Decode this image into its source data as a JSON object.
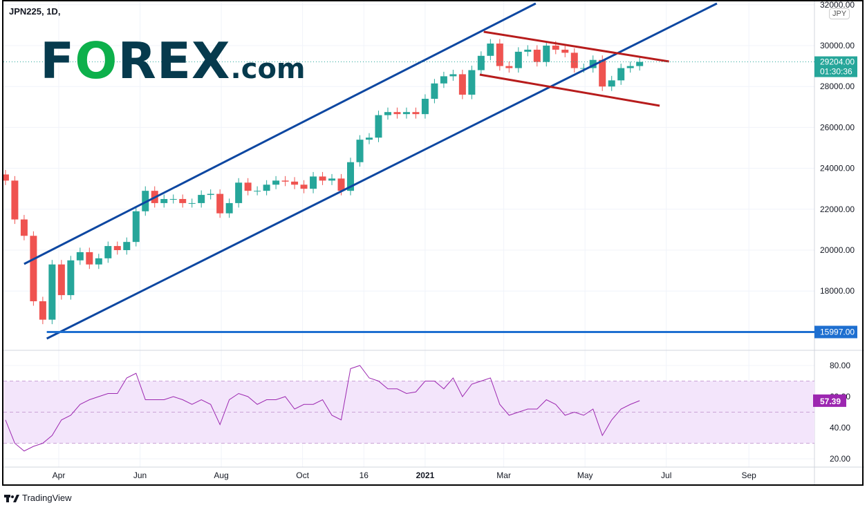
{
  "header": {
    "symbol_title": "JPN225, 1D,",
    "currency": "JPY"
  },
  "logo": {
    "text": "FOREX.com"
  },
  "footer": {
    "brand": "TradingView"
  },
  "price_label": {
    "value": "29204.00",
    "countdown": "01:30:36",
    "color": "#26a69a"
  },
  "support_label": {
    "value": "15997.00",
    "color": "#1e6fd0"
  },
  "rsi_label": {
    "value": "57.39",
    "color": "#9c27b0"
  },
  "chart_data": [
    {
      "type": "candlestick",
      "title": "JPN225, 1D",
      "ylim": [
        15500,
        32000
      ],
      "y_ticks": [
        "32000.00",
        "30000.00",
        "28000.00",
        "26000.00",
        "24000.00",
        "22000.00",
        "20000.00",
        "18000.00"
      ],
      "x_ticks": [
        {
          "label": "Apr",
          "date": "2020-04-01"
        },
        {
          "label": "Jun",
          "date": "2020-06-01"
        },
        {
          "label": "Aug",
          "date": "2020-08-01"
        },
        {
          "label": "Oct",
          "date": "2020-10-01"
        },
        {
          "label": "16",
          "date": "2020-11-16"
        },
        {
          "label": "2021",
          "date": "2021-01-01"
        },
        {
          "label": "Mar",
          "date": "2021-03-01"
        },
        {
          "label": "May",
          "date": "2021-05-01"
        },
        {
          "label": "Jul",
          "date": "2021-07-01"
        },
        {
          "label": "Sep",
          "date": "2021-09-01"
        }
      ],
      "up_color": "#26a69a",
      "down_color": "#ef5350",
      "dates": [
        "2020-02-21",
        "2020-02-28",
        "2020-03-06",
        "2020-03-13",
        "2020-03-20",
        "2020-03-27",
        "2020-04-03",
        "2020-04-10",
        "2020-04-17",
        "2020-04-24",
        "2020-05-01",
        "2020-05-08",
        "2020-05-15",
        "2020-05-22",
        "2020-05-29",
        "2020-06-05",
        "2020-06-12",
        "2020-06-19",
        "2020-06-26",
        "2020-07-03",
        "2020-07-10",
        "2020-07-17",
        "2020-07-24",
        "2020-07-31",
        "2020-08-07",
        "2020-08-14",
        "2020-08-21",
        "2020-08-28",
        "2020-09-04",
        "2020-09-11",
        "2020-09-18",
        "2020-09-25",
        "2020-10-02",
        "2020-10-09",
        "2020-10-16",
        "2020-10-23",
        "2020-10-30",
        "2020-11-06",
        "2020-11-13",
        "2020-11-20",
        "2020-11-27",
        "2020-12-04",
        "2020-12-11",
        "2020-12-18",
        "2020-12-25",
        "2021-01-01",
        "2021-01-08",
        "2021-01-15",
        "2021-01-22",
        "2021-01-29",
        "2021-02-05",
        "2021-02-12",
        "2021-02-19",
        "2021-02-26",
        "2021-03-05",
        "2021-03-12",
        "2021-03-19",
        "2021-03-26",
        "2021-04-02",
        "2021-04-09",
        "2021-04-16",
        "2021-04-23",
        "2021-04-30",
        "2021-05-07",
        "2021-05-14",
        "2021-05-21",
        "2021-05-28",
        "2021-06-04",
        "2021-06-11"
      ],
      "close": [
        23400,
        21500,
        20700,
        17500,
        16600,
        19300,
        17800,
        19500,
        19900,
        19300,
        19600,
        20200,
        20000,
        20400,
        21900,
        22900,
        22300,
        22500,
        22500,
        22300,
        22300,
        22700,
        22750,
        21800,
        22300,
        23300,
        22900,
        22900,
        23200,
        23400,
        23350,
        23200,
        23000,
        23600,
        23400,
        23500,
        22900,
        24300,
        25400,
        25500,
        26600,
        26750,
        26650,
        26750,
        26650,
        27400,
        28150,
        28500,
        28600,
        27600,
        28800,
        29500,
        30100,
        29000,
        28900,
        29700,
        29800,
        29200,
        30000,
        29800,
        29650,
        28900,
        28900,
        29300,
        28000,
        28300,
        28900,
        29000,
        29204
      ],
      "trendlines": [
        {
          "color": "#0d47a1",
          "from": [
            "2020-03-06",
            19324
          ],
          "to": [
            "2021-03-25",
            32060
          ]
        },
        {
          "color": "#0d47a1",
          "from": [
            "2020-03-23",
            15676
          ],
          "to": [
            "2021-08-08",
            32060
          ]
        },
        {
          "color": "#b71c1c",
          "from": [
            "2021-02-14",
            30676
          ],
          "to": [
            "2021-07-03",
            29223
          ]
        },
        {
          "color": "#b71c1c",
          "from": [
            "2021-02-11",
            28581
          ],
          "to": [
            "2021-06-26",
            27061
          ]
        }
      ],
      "horizontal_line": {
        "value": 15997,
        "from": "2020-03-23",
        "color": "#1e6fd0"
      }
    },
    {
      "type": "line",
      "title": "RSI",
      "ylim": [
        15,
        88
      ],
      "y_ticks": [
        "80.00",
        "60.00",
        "40.00",
        "20.00"
      ],
      "band": [
        30,
        70
      ],
      "color": "#9c27b0",
      "values": [
        45,
        30,
        25,
        28,
        30,
        35,
        45,
        48,
        55,
        58,
        60,
        62,
        62,
        72,
        75,
        58,
        58,
        58,
        60,
        58,
        55,
        58,
        55,
        42,
        58,
        62,
        60,
        55,
        58,
        58,
        60,
        52,
        55,
        55,
        58,
        48,
        45,
        78,
        80,
        72,
        70,
        65,
        65,
        62,
        63,
        70,
        70,
        65,
        72,
        60,
        68,
        70,
        72,
        55,
        48,
        50,
        52,
        52,
        58,
        55,
        48,
        50,
        48,
        52,
        35,
        45,
        52,
        55,
        57.39
      ]
    }
  ]
}
